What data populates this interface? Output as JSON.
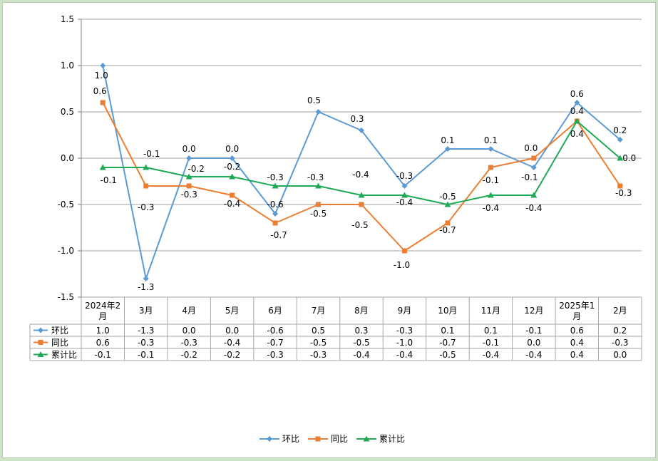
{
  "chart_data": {
    "type": "line",
    "title": "",
    "xlabel": "",
    "ylabel": "",
    "ylim": [
      -1.5,
      1.5
    ],
    "yticks": [
      -1.5,
      -1.0,
      -0.5,
      0.0,
      0.5,
      1.0,
      1.5
    ],
    "ytick_labels": [
      "-1.5",
      "-1.0",
      "-0.5",
      "0.0",
      "0.5",
      "1.0",
      "1.5"
    ],
    "grid": true,
    "legend_position": "bottom",
    "data_table": true,
    "categories": [
      "2024年2月",
      "3月",
      "4月",
      "5月",
      "6月",
      "7月",
      "8月",
      "9月",
      "10月",
      "11月",
      "12月",
      "2025年1月",
      "2月"
    ],
    "series": [
      {
        "name": "环比",
        "color": "#5b9bd5",
        "marker": "diamond",
        "values": [
          1.0,
          -1.3,
          0.0,
          0.0,
          -0.6,
          0.5,
          0.3,
          -0.3,
          0.1,
          0.1,
          -0.1,
          0.6,
          0.2
        ],
        "labels": [
          "1.0",
          "-1.3",
          "0.0",
          "0.0",
          "-0.6",
          "0.5",
          "0.3",
          "-0.3",
          "0.1",
          "0.1",
          "-0.1",
          "0.6",
          "0.2"
        ]
      },
      {
        "name": "同比",
        "color": "#ed7d31",
        "marker": "square",
        "values": [
          0.6,
          -0.3,
          -0.3,
          -0.4,
          -0.7,
          -0.5,
          -0.5,
          -1.0,
          -0.7,
          -0.1,
          0.0,
          0.4,
          -0.3
        ],
        "labels": [
          "0.6",
          "-0.3",
          "-0.3",
          "-0.4",
          "-0.7",
          "-0.5",
          "-0.5",
          "-1.0",
          "-0.7",
          "-0.1",
          "0.0",
          "0.4",
          "-0.3"
        ]
      },
      {
        "name": "累计比",
        "color": "#1faa55",
        "marker": "triangle",
        "values": [
          -0.1,
          -0.1,
          -0.2,
          -0.2,
          -0.3,
          -0.3,
          -0.4,
          -0.4,
          -0.5,
          -0.4,
          -0.4,
          0.4,
          0.0
        ],
        "labels": [
          "-0.1",
          "-0.1",
          "-0.2",
          "-0.2",
          "-0.3",
          "-0.3",
          "-0.4",
          "-0.4",
          "-0.5",
          "-0.4",
          "-0.4",
          "0.4",
          "0.0"
        ]
      }
    ]
  }
}
